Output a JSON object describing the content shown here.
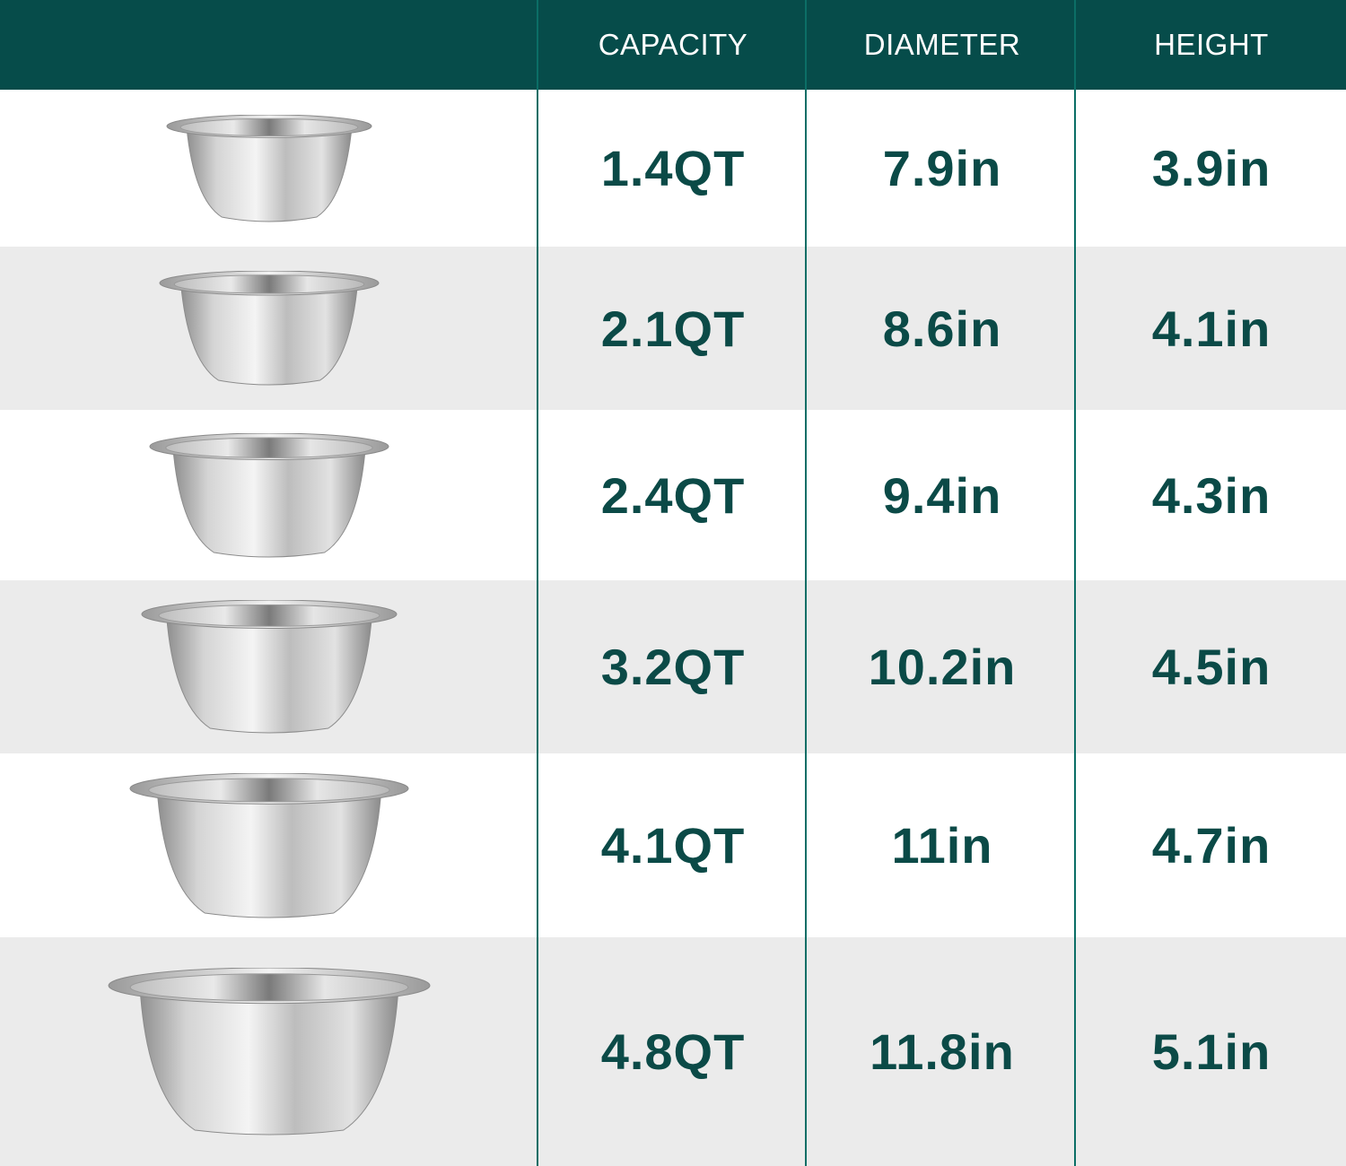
{
  "colors": {
    "header_bg": "#064c4a",
    "header_text": "#ffffff",
    "value_text": "#0b4a47",
    "divider": "#0b6e66",
    "row_alt": "#ebebeb"
  },
  "header": {
    "blank": "",
    "capacity": "CAPACITY",
    "diameter": "DIAMETER",
    "height": "HEIGHT"
  },
  "rows": [
    {
      "image": "bowl-icon",
      "capacity": "1.4QT",
      "diameter": "7.9in",
      "height": "3.9in"
    },
    {
      "image": "bowl-icon",
      "capacity": "2.1QT",
      "diameter": "8.6in",
      "height": "4.1in"
    },
    {
      "image": "bowl-icon",
      "capacity": "2.4QT",
      "diameter": "9.4in",
      "height": "4.3in"
    },
    {
      "image": "bowl-icon",
      "capacity": "3.2QT",
      "diameter": "10.2in",
      "height": "4.5in"
    },
    {
      "image": "bowl-icon",
      "capacity": "4.1QT",
      "diameter": "11in",
      "height": "4.7in"
    },
    {
      "image": "bowl-icon",
      "capacity": "4.8QT",
      "diameter": "11.8in",
      "height": "5.1in"
    }
  ]
}
